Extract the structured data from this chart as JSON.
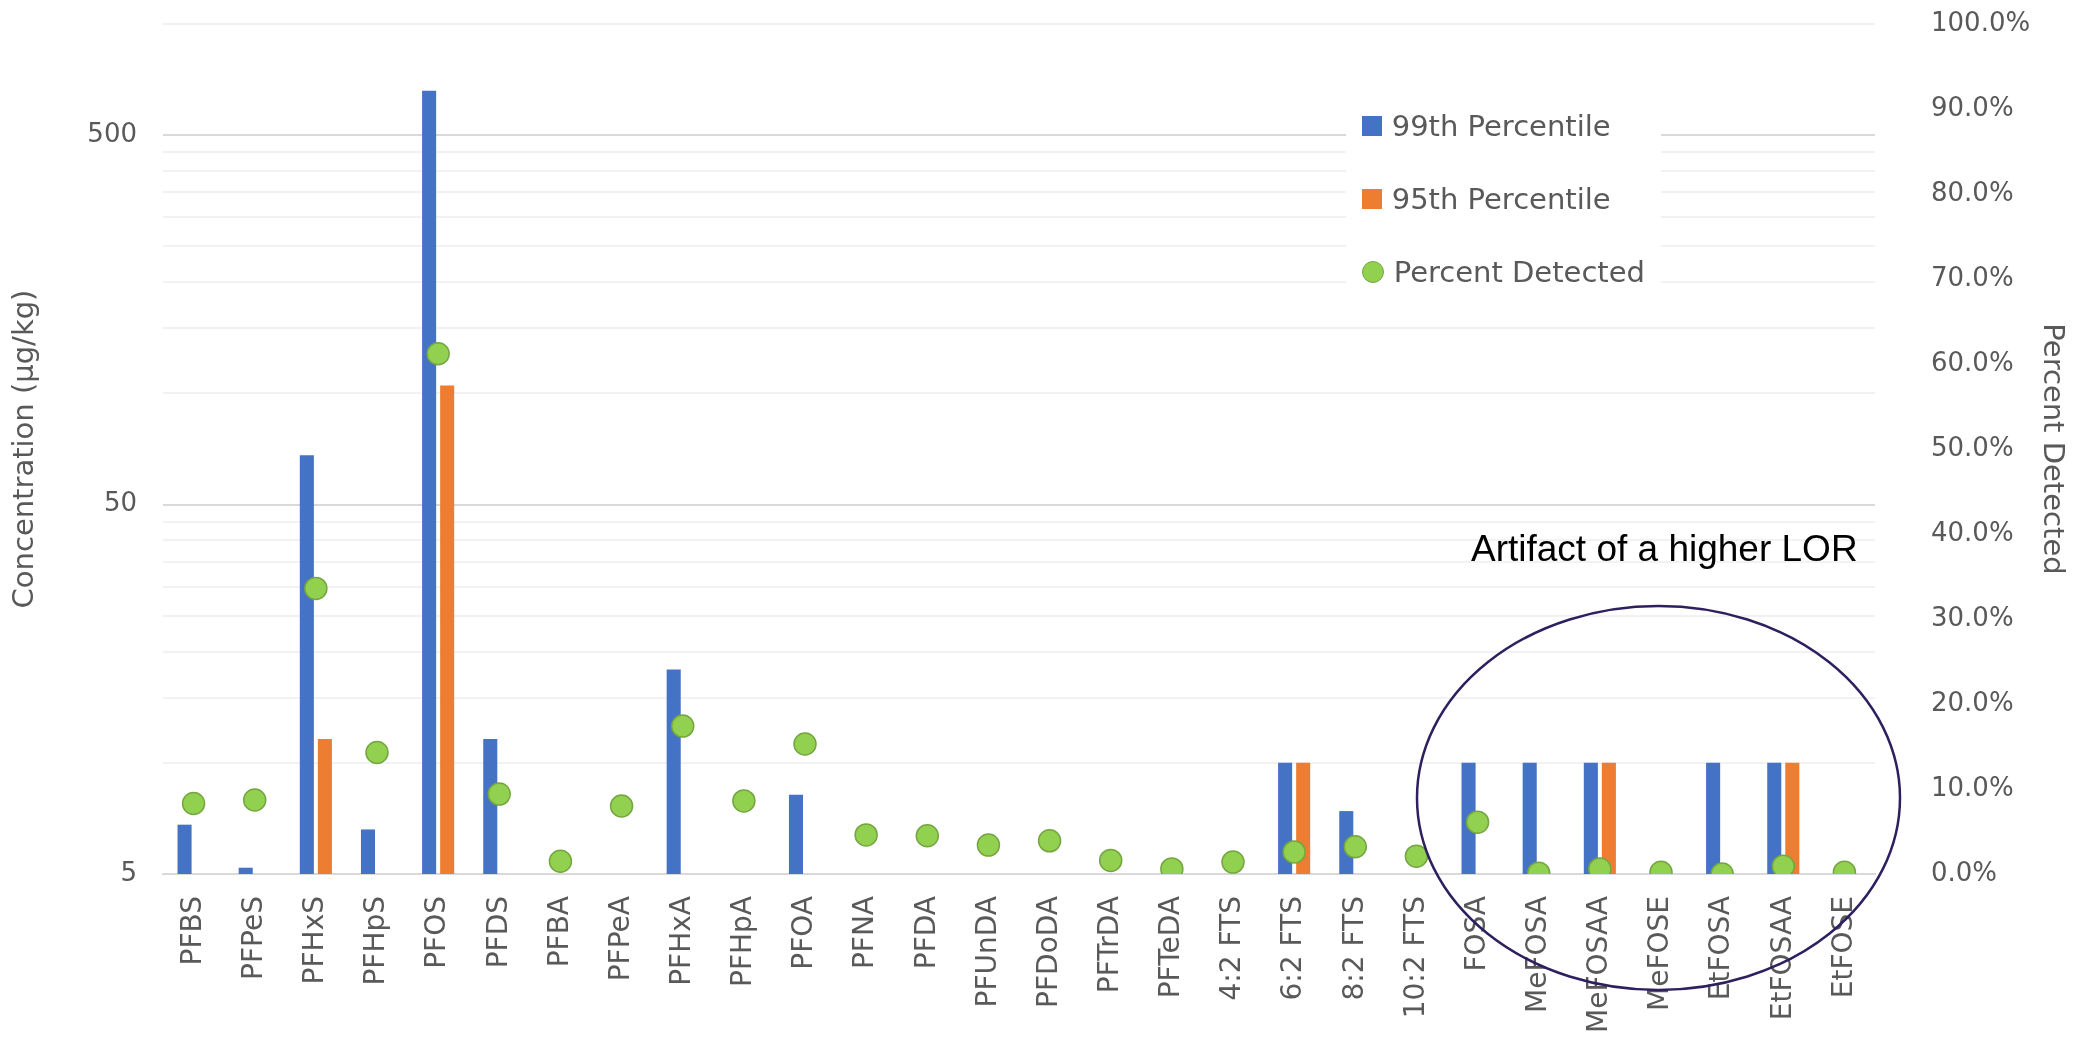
{
  "chart_data": {
    "type": "bar",
    "categories": [
      "PFBS",
      "PFPeS",
      "PFHxS",
      "PFHpS",
      "PFOS",
      "PFDS",
      "PFBA",
      "PFPeA",
      "PFHxA",
      "PFHpA",
      "PFOA",
      "PFNA",
      "PFDA",
      "PFUnDA",
      "PFDoDA",
      "PFTrDA",
      "PFTeDA",
      "4:2 FTS",
      "6:2 FTS",
      "8:2 FTS",
      "10:2 FTS",
      "FOSA",
      "MeFOSA",
      "MeFOSAA",
      "MeFOSE",
      "EtFOSA",
      "EtFOSAA",
      "EtFOSE"
    ],
    "series": [
      {
        "name": "99th Percentile",
        "color": "#4472c4",
        "values": [
          6.8,
          5.2,
          68,
          6.6,
          660,
          11.6,
          null,
          null,
          17.9,
          null,
          8.2,
          null,
          null,
          null,
          null,
          null,
          null,
          null,
          10,
          7.4,
          null,
          10,
          10,
          10,
          null,
          10,
          10,
          null
        ]
      },
      {
        "name": "95th Percentile",
        "color": "#ed7d31",
        "values": [
          null,
          null,
          11.6,
          null,
          105,
          null,
          null,
          null,
          null,
          null,
          null,
          null,
          null,
          null,
          null,
          null,
          null,
          null,
          10,
          null,
          null,
          null,
          null,
          10,
          null,
          null,
          10,
          null
        ]
      },
      {
        "name": "Percent Detected",
        "type": "scatter",
        "axis": "y2",
        "color": "#92d050",
        "values": [
          8.3,
          8.7,
          33.6,
          14.3,
          61.2,
          9.4,
          1.5,
          8.0,
          17.4,
          8.6,
          15.3,
          4.6,
          4.5,
          3.4,
          3.9,
          1.6,
          0.6,
          1.4,
          2.6,
          3.2,
          2.1,
          6.1,
          0.1,
          0.6,
          0.2,
          0.0,
          0.9,
          0.2
        ]
      }
    ],
    "ylabel": "Concentration (µg/kg)",
    "y2label": "Percent Detected",
    "log": "y",
    "ylim": [
      5,
      1000
    ],
    "yticks": [
      5,
      {
        "value": 10,
        "label": null
      },
      {
        "value": 15,
        "label": null
      },
      {
        "value": 20,
        "label": null
      },
      {
        "value": 25,
        "label": null
      },
      {
        "value": 30,
        "label": null
      },
      {
        "value": 35,
        "label": null
      },
      {
        "value": 40,
        "label": null
      },
      {
        "value": 45,
        "label": null
      },
      50,
      {
        "value": 100,
        "label": null
      },
      {
        "value": 150,
        "label": null
      },
      {
        "value": 200,
        "label": null
      },
      {
        "value": 250,
        "label": null
      },
      {
        "value": 300,
        "label": null
      },
      {
        "value": 350,
        "label": null
      },
      {
        "value": 400,
        "label": null
      },
      {
        "value": 450,
        "label": null
      },
      500,
      {
        "value": 1000,
        "label": null
      }
    ],
    "y2lim": [
      0,
      100
    ],
    "y2ticks": [
      {
        "value": 0,
        "label": "0.0%"
      },
      {
        "value": 10,
        "label": "10.0%"
      },
      {
        "value": 20,
        "label": "20.0%"
      },
      {
        "value": 30,
        "label": "30.0%"
      },
      {
        "value": 40,
        "label": "40.0%"
      },
      {
        "value": 50,
        "label": "50.0%"
      },
      {
        "value": 60,
        "label": "60.0%"
      },
      {
        "value": 70,
        "label": "70.0%"
      },
      {
        "value": 80,
        "label": "80.0%"
      },
      {
        "value": 90,
        "label": "90.0%"
      },
      {
        "value": 100,
        "label": "100.0%"
      }
    ],
    "grid": "y",
    "legend": "top right",
    "marker": "circle",
    "annotations": [
      "Artifact of a higher LOR"
    ]
  }
}
